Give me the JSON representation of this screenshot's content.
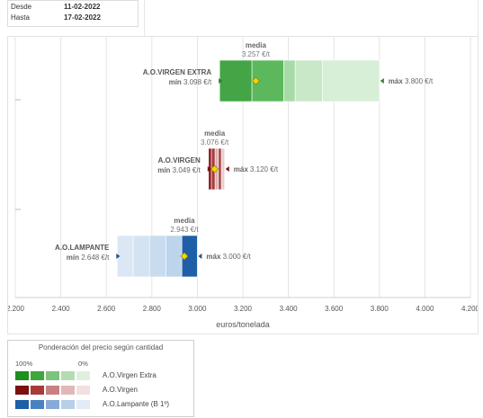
{
  "dates": {
    "desde_label": "Desde",
    "desde_value": "11-02-2022",
    "hasta_label": "Hasta",
    "hasta_value": "17-02-2022"
  },
  "chart_data": {
    "type": "range-bar",
    "xlabel": "euros/tonelada",
    "xlim": [
      2200,
      4200
    ],
    "xticks": [
      2200,
      2400,
      2600,
      2800,
      3000,
      3200,
      3400,
      3600,
      3800,
      4000,
      4200
    ],
    "xtick_labels": [
      "2.200",
      "2.400",
      "2.600",
      "2.800",
      "3.000",
      "3.200",
      "3.400",
      "3.600",
      "3.800",
      "4.000",
      "4.200"
    ],
    "grid": true,
    "series": [
      {
        "name": "A.O.VIRGEN EXTRA",
        "min": 3098,
        "max": 3800,
        "mean": 3257,
        "bands": [
          3098,
          3240,
          3380,
          3430,
          3550,
          3800
        ],
        "colors": [
          "#43a545",
          "#5cb85c",
          "#a8daa8",
          "#c8e8c8",
          "#d6efd6"
        ],
        "min_label": "mín",
        "min_text": "3.098 €/t",
        "max_label": "máx",
        "max_text": "3.800 €/t",
        "mean_label": "media",
        "mean_text": "3.257 €/t",
        "pointer_color": "#2e7d32"
      },
      {
        "name": "A.O.VIRGEN",
        "min": 3049,
        "max": 3120,
        "mean": 3076,
        "bands": [
          3049,
          3062,
          3078,
          3092,
          3106,
          3120
        ],
        "colors": [
          "#8b1a1a",
          "#a83a3a",
          "#d9b0b0",
          "#b05454",
          "#e8cfcf"
        ],
        "min_label": "mín",
        "min_text": "3.049 €/t",
        "max_label": "máx",
        "max_text": "3.120 €/t",
        "mean_label": "media",
        "mean_text": "3.076 €/t",
        "pointer_color": "#7b1010"
      },
      {
        "name": "A.O.LAMPANTE",
        "min": 2648,
        "max": 3000,
        "mean": 2943,
        "bands": [
          2648,
          2718,
          2790,
          2862,
          2932,
          3000
        ],
        "colors": [
          "#dbe7f4",
          "#d4e3f2",
          "#c9dcef",
          "#bcd4ec",
          "#1f5fa8"
        ],
        "min_label": "mín",
        "min_text": "2.648 €/t",
        "max_label": "máx",
        "max_text": "3.000 €/t",
        "mean_label": "media",
        "mean_text": "2.943 €/t",
        "pointer_color": "#1f4f8f"
      }
    ]
  },
  "legend": {
    "title": "Ponderación del precio según cantidad",
    "scale_left": "100%",
    "scale_right": "0%",
    "rows": [
      {
        "label": "A.O.Virgen Extra",
        "colors": [
          "#1f8f1f",
          "#3fa63f",
          "#7cc47c",
          "#b4dcb4",
          "#e0f0e0"
        ]
      },
      {
        "label": "A.O.Virgen",
        "colors": [
          "#7b1010",
          "#a83a3a",
          "#c98080",
          "#e0b8b8",
          "#f2e0e0"
        ]
      },
      {
        "label": "A.O.Lampante (B 1º)",
        "colors": [
          "#1f5fa8",
          "#4a82c0",
          "#86abd6",
          "#b8cfe8",
          "#e2ecf7"
        ]
      }
    ]
  }
}
